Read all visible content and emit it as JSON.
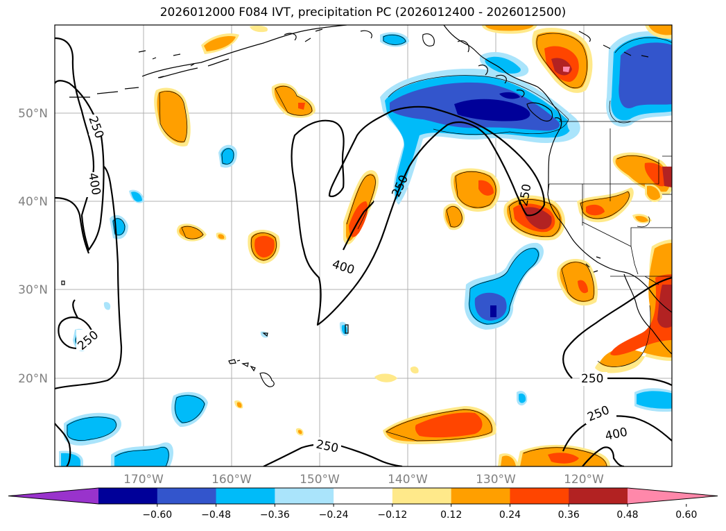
{
  "title": "2026012000 F084 IVT, precipitation PC (2026012400 - 2026012500)",
  "latitude_labels": [
    "50°N",
    "40°N",
    "30°N",
    "20°N"
  ],
  "longitude_labels": [
    "170°W",
    "160°W",
    "150°W",
    "140°W",
    "130°W",
    "120°W"
  ],
  "colorbar": {
    "ticks": [
      "−0.60",
      "−0.48",
      "−0.36",
      "−0.24",
      "−0.12",
      "0.12",
      "0.24",
      "0.36",
      "0.48",
      "0.60"
    ],
    "colors": [
      "#9933cc",
      "#000099",
      "#3355cc",
      "#00bbf9",
      "#aae4fb",
      "#ffffff",
      "#ffe98a",
      "#ff9f00",
      "#ff4500",
      "#b22222",
      "#ff88aa"
    ],
    "extend": "both"
  },
  "ivt_contour_labels": [
    {
      "text": "250"
    },
    {
      "text": "400"
    },
    {
      "text": "250"
    },
    {
      "text": "250"
    },
    {
      "text": "400"
    },
    {
      "text": "250"
    },
    {
      "text": "250"
    },
    {
      "text": "250"
    },
    {
      "text": "400"
    },
    {
      "text": "250"
    }
  ]
}
